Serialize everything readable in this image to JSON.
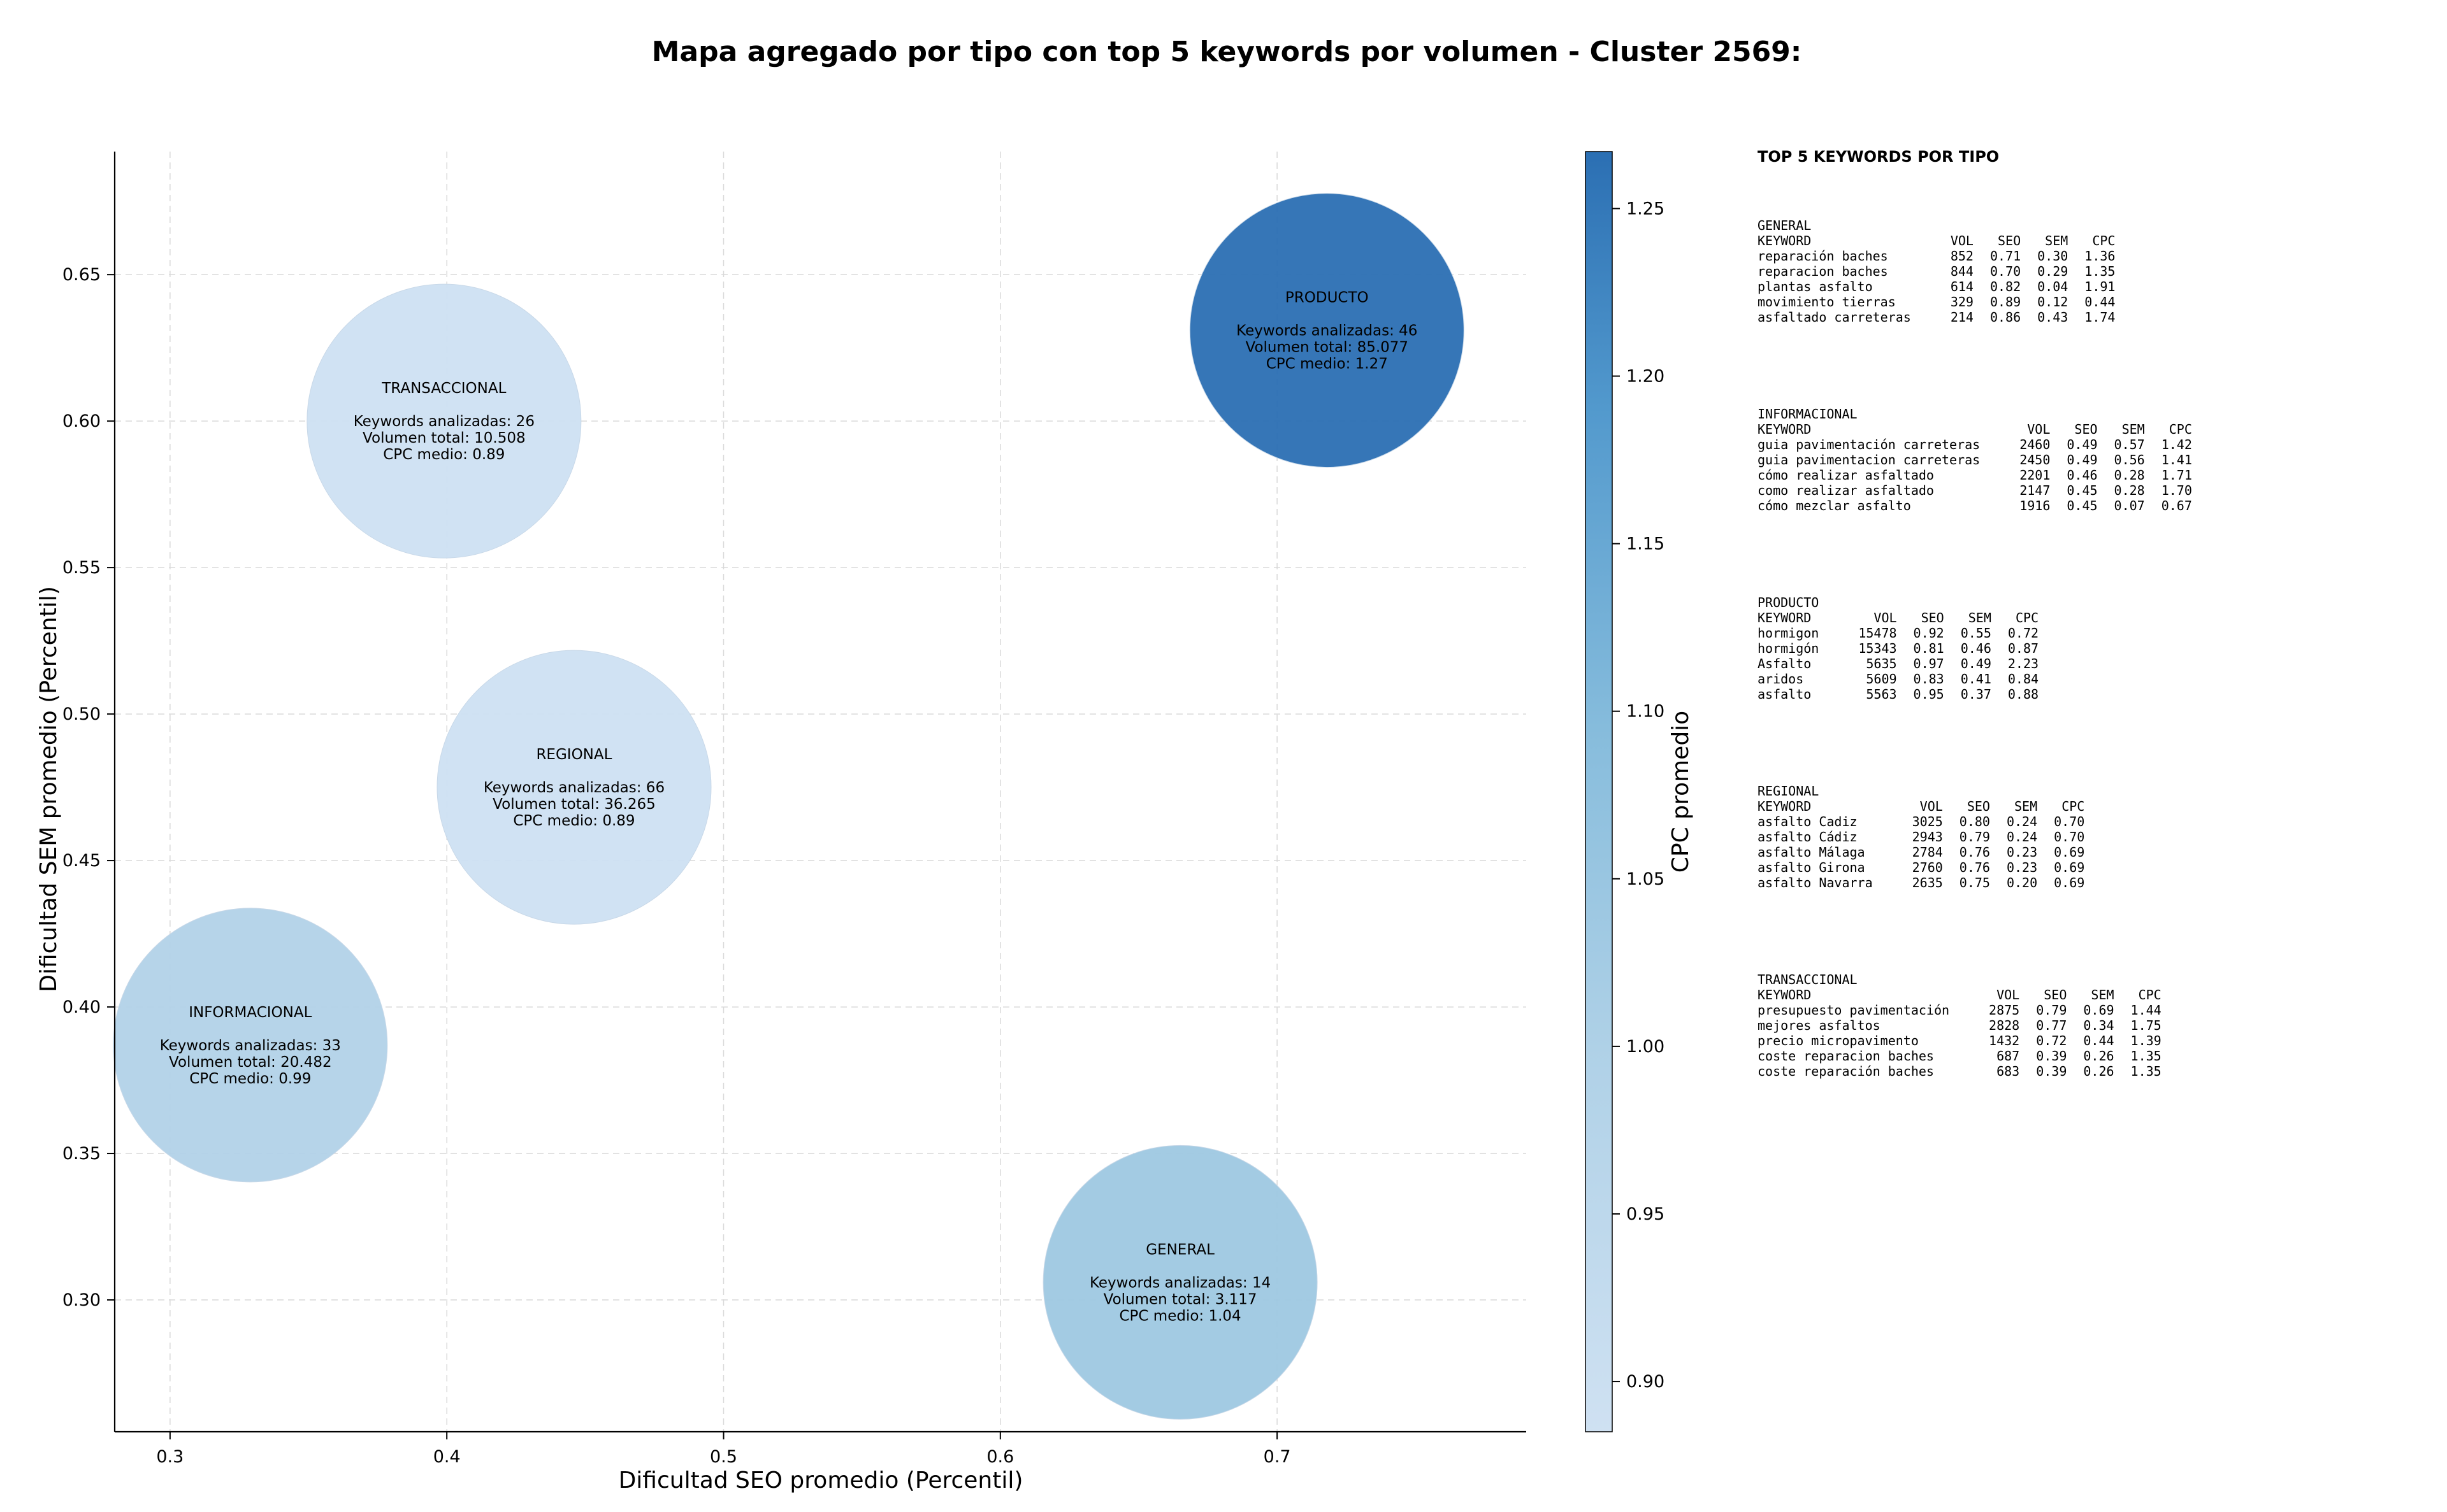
{
  "chart_data": {
    "type": "scatter",
    "title": "Mapa agregado por tipo con top 5 keywords por volumen - Cluster 2569:",
    "xlabel": "Dificultad SEO promedio (Percentil)",
    "ylabel": "Dificultad SEM promedio (Percentil)",
    "xlim": [
      0.28,
      0.79
    ],
    "ylim": [
      0.255,
      0.692
    ],
    "xticks": [
      0.3,
      0.4,
      0.5,
      0.6,
      0.7
    ],
    "yticks": [
      0.3,
      0.35,
      0.4,
      0.45,
      0.5,
      0.55,
      0.6,
      0.65
    ],
    "grid": true,
    "colorbar": {
      "label": "CPC promedio",
      "min": 0.885,
      "max": 1.267,
      "ticks": [
        0.9,
        0.95,
        1.0,
        1.05,
        1.1,
        1.15,
        1.2,
        1.25
      ],
      "color_low": "#cfe1f2",
      "color_high": "#2b6fb3"
    },
    "points": [
      {
        "name": "TRANSACCIONAL",
        "x": 0.399,
        "y": 0.6,
        "keywords": 26,
        "volume": 10508,
        "lines": [
          "Keywords analizadas: 26",
          "Volumen total: 10.508",
          "CPC medio: 0.89"
        ],
        "cpc": 0.89
      },
      {
        "name": "PRODUCTO",
        "x": 0.718,
        "y": 0.631,
        "keywords": 46,
        "volume": 85077,
        "lines": [
          "Keywords analizadas: 46",
          "Volumen total: 85.077",
          "CPC medio: 1.27"
        ],
        "cpc": 1.27
      },
      {
        "name": "REGIONAL",
        "x": 0.446,
        "y": 0.475,
        "keywords": 66,
        "volume": 36265,
        "lines": [
          "Keywords analizadas: 66",
          "Volumen total: 36.265",
          "CPC medio: 0.89"
        ],
        "cpc": 0.89
      },
      {
        "name": "INFORMACIONAL",
        "x": 0.329,
        "y": 0.387,
        "keywords": 33,
        "volume": 20482,
        "lines": [
          "Keywords analizadas: 33",
          "Volumen total: 20.482",
          "CPC medio: 0.99"
        ],
        "cpc": 0.99
      },
      {
        "name": "GENERAL",
        "x": 0.665,
        "y": 0.306,
        "keywords": 14,
        "volume": 3117,
        "lines": [
          "Keywords analizadas: 14",
          "Volumen total: 3.117",
          "CPC medio: 1.04"
        ],
        "cpc": 1.04
      }
    ]
  },
  "side_panel": {
    "title": "TOP 5 KEYWORDS POR TIPO",
    "columns": [
      "KEYWORD",
      "VOL",
      "SEO",
      "SEM",
      "CPC"
    ],
    "blocks": [
      {
        "name": "GENERAL",
        "rows": [
          [
            "reparación baches",
            "852",
            "0.71",
            "0.30",
            "1.36"
          ],
          [
            "reparacion baches",
            "844",
            "0.70",
            "0.29",
            "1.35"
          ],
          [
            "plantas asfalto",
            "614",
            "0.82",
            "0.04",
            "1.91"
          ],
          [
            "movimiento tierras",
            "329",
            "0.89",
            "0.12",
            "0.44"
          ],
          [
            "asfaltado carreteras",
            "214",
            "0.86",
            "0.43",
            "1.74"
          ]
        ]
      },
      {
        "name": "INFORMACIONAL",
        "rows": [
          [
            "guia pavimentación carreteras",
            "2460",
            "0.49",
            "0.57",
            "1.42"
          ],
          [
            "guia pavimentacion carreteras",
            "2450",
            "0.49",
            "0.56",
            "1.41"
          ],
          [
            "cómo realizar asfaltado",
            "2201",
            "0.46",
            "0.28",
            "1.71"
          ],
          [
            "como realizar asfaltado",
            "2147",
            "0.45",
            "0.28",
            "1.70"
          ],
          [
            "cómo mezclar asfalto",
            "1916",
            "0.45",
            "0.07",
            "0.67"
          ]
        ]
      },
      {
        "name": "PRODUCTO",
        "rows": [
          [
            "hormigon",
            "15478",
            "0.92",
            "0.55",
            "0.72"
          ],
          [
            "hormigón",
            "15343",
            "0.81",
            "0.46",
            "0.87"
          ],
          [
            "Asfalto",
            "5635",
            "0.97",
            "0.49",
            "2.23"
          ],
          [
            "aridos",
            "5609",
            "0.83",
            "0.41",
            "0.84"
          ],
          [
            "asfalto",
            "5563",
            "0.95",
            "0.37",
            "0.88"
          ]
        ]
      },
      {
        "name": "REGIONAL",
        "rows": [
          [
            "asfalto Cadiz",
            "3025",
            "0.80",
            "0.24",
            "0.70"
          ],
          [
            "asfalto Cádiz",
            "2943",
            "0.79",
            "0.24",
            "0.70"
          ],
          [
            "asfalto Málaga",
            "2784",
            "0.76",
            "0.23",
            "0.69"
          ],
          [
            "asfalto Girona",
            "2760",
            "0.76",
            "0.23",
            "0.69"
          ],
          [
            "asfalto Navarra",
            "2635",
            "0.75",
            "0.20",
            "0.69"
          ]
        ]
      },
      {
        "name": "TRANSACCIONAL",
        "rows": [
          [
            "presupuesto pavimentación",
            "2875",
            "0.79",
            "0.69",
            "1.44"
          ],
          [
            "mejores asfaltos",
            "2828",
            "0.77",
            "0.34",
            "1.75"
          ],
          [
            "precio micropavimento",
            "1432",
            "0.72",
            "0.44",
            "1.39"
          ],
          [
            "coste reparacion baches",
            "687",
            "0.39",
            "0.26",
            "1.35"
          ],
          [
            "coste reparación baches",
            "683",
            "0.39",
            "0.26",
            "1.35"
          ]
        ]
      }
    ]
  }
}
